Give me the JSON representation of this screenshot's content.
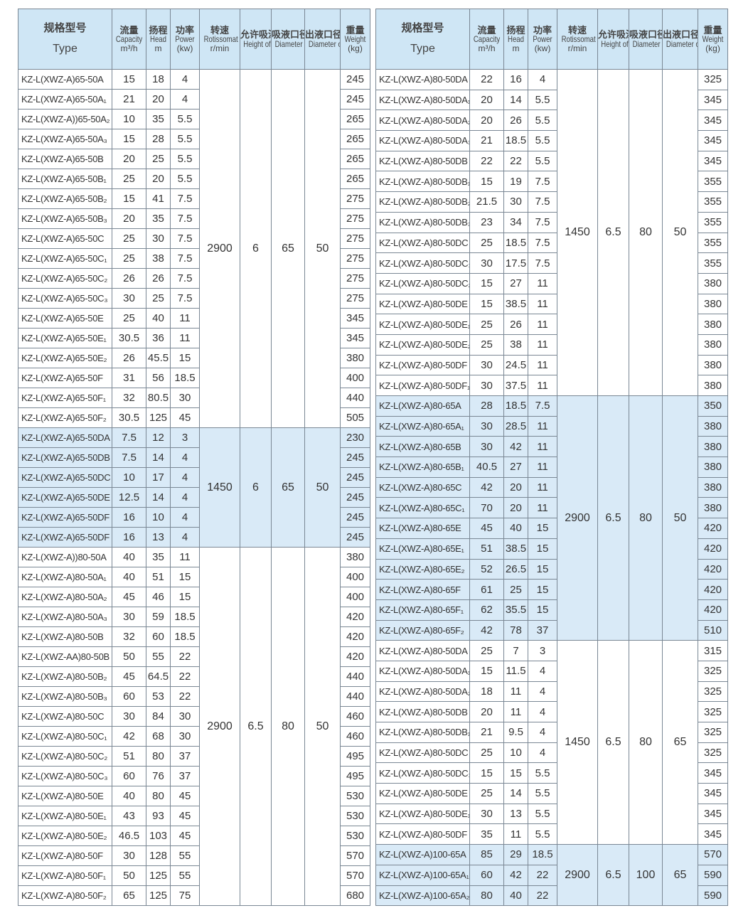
{
  "header": {
    "type": {
      "cn": "规格型号",
      "en": "Type"
    },
    "capacity": {
      "cn": "流量",
      "en": "Capacity",
      "unit": "m³/h"
    },
    "head": {
      "cn": "扬程",
      "en": "Head",
      "unit": "m"
    },
    "power": {
      "cn": "功率",
      "en": "Power",
      "unit": "(kw)"
    },
    "speed": {
      "cn": "转速",
      "en": "Rotissomat Speed",
      "unit": "r/min"
    },
    "suction": {
      "cn": "允许吸深",
      "en": "Height of Suciton"
    },
    "inlet": {
      "cn": "吸液口径",
      "en": "Diameter of Inlet"
    },
    "outlet": {
      "cn": "出液口径",
      "en": "Diameter of Outlet"
    },
    "weight": {
      "cn": "重量",
      "en": "Weight",
      "unit": "(kg)"
    }
  },
  "shade_color": "#d9eaf7",
  "header_color": "#cfe6f5",
  "tables": [
    {
      "groups": [
        {
          "speed": "2900",
          "suction": "6",
          "inlet": "65",
          "outlet": "50",
          "shaded": false,
          "rows": [
            [
              "KZ-L(XWZ-A)65-50A",
              "15",
              "18",
              "4",
              "245"
            ],
            [
              "KZ-L(XWZ-A)65-50A₁",
              "21",
              "20",
              "4",
              "245"
            ],
            [
              "KZ-L(XWZ-A))65-50A₂",
              "10",
              "35",
              "5.5",
              "265"
            ],
            [
              "KZ-L(XWZ-A)65-50A₃",
              "15",
              "28",
              "5.5",
              "265"
            ],
            [
              "KZ-L(XWZ-A)65-50B",
              "20",
              "25",
              "5.5",
              "265"
            ],
            [
              "KZ-L(XWZ-A)65-50B₁",
              "25",
              "20",
              "5.5",
              "265"
            ],
            [
              "KZ-L(XWZ-A)65-50B₂",
              "15",
              "41",
              "7.5",
              "275"
            ],
            [
              "KZ-L(XWZ-A)65-50B₃",
              "20",
              "35",
              "7.5",
              "275"
            ],
            [
              "KZ-L(XWZ-A)65-50C",
              "25",
              "30",
              "7.5",
              "275"
            ],
            [
              "KZ-L(XWZ-A)65-50C₁",
              "25",
              "38",
              "7.5",
              "275"
            ],
            [
              "KZ-L(XWZ-A)65-50C₂",
              "26",
              "26",
              "7.5",
              "275"
            ],
            [
              "KZ-L(XWZ-A)65-50C₃",
              "30",
              "25",
              "7.5",
              "275"
            ],
            [
              "KZ-L(XWZ-A)65-50E",
              "25",
              "40",
              "11",
              "345"
            ],
            [
              "KZ-L(XWZ-A)65-50E₁",
              "30.5",
              "36",
              "11",
              "345"
            ],
            [
              "KZ-L(XWZ-A)65-50E₂",
              "26",
              "45.5",
              "15",
              "380"
            ],
            [
              "KZ-L(XWZ-A)65-50F",
              "31",
              "56",
              "18.5",
              "400"
            ],
            [
              "KZ-L(XWZ-A)65-50F₁",
              "32",
              "80.5",
              "30",
              "440"
            ],
            [
              "KZ-L(XWZ-A)65-50F₂",
              "30.5",
              "125",
              "45",
              "505"
            ]
          ]
        },
        {
          "speed": "1450",
          "suction": "6",
          "inlet": "65",
          "outlet": "50",
          "shaded": true,
          "rows": [
            [
              "KZ-L(XWZ-A)65-50DA",
              "7.5",
              "12",
              "3",
              "230"
            ],
            [
              "KZ-L(XWZ-A)65-50DB",
              "7.5",
              "14",
              "4",
              "245"
            ],
            [
              "KZ-L(XWZ-A)65-50DC",
              "10",
              "17",
              "4",
              "245"
            ],
            [
              "KZ-L(XWZ-A)65-50DE",
              "12.5",
              "14",
              "4",
              "245"
            ],
            [
              "KZ-L(XWZ-A)65-50DF",
              "16",
              "10",
              "4",
              "245"
            ],
            [
              "KZ-L(XWZ-A)65-50DF",
              "16",
              "13",
              "4",
              "245"
            ]
          ]
        },
        {
          "speed": "2900",
          "suction": "6.5",
          "inlet": "80",
          "outlet": "50",
          "shaded": false,
          "rows": [
            [
              "KZ-L(XWZ-A))80-50A",
              "40",
              "35",
              "11",
              "380"
            ],
            [
              "KZ-L(XWZ-A)80-50A₁",
              "40",
              "51",
              "15",
              "400"
            ],
            [
              "KZ-L(XWZ-A)80-50A₂",
              "45",
              "46",
              "15",
              "400"
            ],
            [
              "KZ-L(XWZ-A)80-50A₃",
              "30",
              "59",
              "18.5",
              "420"
            ],
            [
              "KZ-L(XWZ-A)80-50B",
              "32",
              "60",
              "18.5",
              "420"
            ],
            [
              "KZ-L(XWZ-AA)80-50B",
              "50",
              "55",
              "22",
              "420"
            ],
            [
              "KZ-L(XWZ-A)80-50B₂",
              "45",
              "64.5",
              "22",
              "440"
            ],
            [
              "KZ-L(XWZ-A)80-50B₃",
              "60",
              "53",
              "22",
              "440"
            ],
            [
              "KZ-L(XWZ-A)80-50C",
              "30",
              "84",
              "30",
              "460"
            ],
            [
              "KZ-L(XWZ-A)80-50C₁",
              "42",
              "68",
              "30",
              "460"
            ],
            [
              "KZ-L(XWZ-A)80-50C₂",
              "51",
              "80",
              "37",
              "495"
            ],
            [
              "KZ-L(XWZ-A)80-50C₃",
              "60",
              "76",
              "37",
              "495"
            ],
            [
              "KZ-L(XWZ-A)80-50E",
              "40",
              "80",
              "45",
              "530"
            ],
            [
              "KZ-L(XWZ-A)80-50E₁",
              "43",
              "93",
              "45",
              "530"
            ],
            [
              "KZ-L(XWZ-A)80-50E₂",
              "46.5",
              "103",
              "45",
              "530"
            ],
            [
              "KZ-L(XWZ-A)80-50F",
              "30",
              "128",
              "55",
              "570"
            ],
            [
              "KZ-L(XWZ-A)80-50F₁",
              "50",
              "125",
              "55",
              "570"
            ],
            [
              "KZ-L(XWZ-A)80-50F₂",
              "65",
              "125",
              "75",
              "680"
            ]
          ]
        }
      ]
    },
    {
      "groups": [
        {
          "speed": "1450",
          "suction": "6.5",
          "inlet": "80",
          "outlet": "50",
          "shaded": false,
          "rows": [
            [
              "KZ-L(XWZ-A)80-50DA",
              "22",
              "16",
              "4",
              "325"
            ],
            [
              "KZ-L(XWZ-A)80-50DA₁",
              "20",
              "14",
              "5.5",
              "345"
            ],
            [
              "KZ-L(XWZ-A)80-50DA₂",
              "20",
              "26",
              "5.5",
              "345"
            ],
            [
              "KZ-L(XWZ-A)80-50DA₃",
              "21",
              "18.5",
              "5.5",
              "345"
            ],
            [
              "KZ-L(XWZ-A)80-50DB",
              "22",
              "22",
              "5.5",
              "345"
            ],
            [
              "KZ-L(XWZ-A)80-50DB₁",
              "15",
              "19",
              "7.5",
              "355"
            ],
            [
              "KZ-L(XWZ-A)80-50DB₂",
              "21.5",
              "30",
              "7.5",
              "355"
            ],
            [
              "KZ-L(XWZ-A)80-50DB₃",
              "23",
              "34",
              "7.5",
              "355"
            ],
            [
              "KZ-L(XWZ-A)80-50DC",
              "25",
              "18.5",
              "7.5",
              "355"
            ],
            [
              "KZ-L(XWZ-A)80-50DC₁",
              "30",
              "17.5",
              "7.5",
              "355"
            ],
            [
              "KZ-L(XWZ-A)80-50DC₂",
              "15",
              "27",
              "11",
              "380"
            ],
            [
              "KZ-L(XWZ-A)80-50DE",
              "15",
              "38.5",
              "11",
              "380"
            ],
            [
              "KZ-L(XWZ-A)80-50DE₁",
              "25",
              "26",
              "11",
              "380"
            ],
            [
              "KZ-L(XWZ-A)80-50DE₂",
              "25",
              "38",
              "11",
              "380"
            ],
            [
              "KZ-L(XWZ-A)80-50DF",
              "30",
              "24.5",
              "11",
              "380"
            ],
            [
              "KZ-L(XWZ-A)80-50DF₁",
              "30",
              "37.5",
              "11",
              "380"
            ]
          ]
        },
        {
          "speed": "2900",
          "suction": "6.5",
          "inlet": "80",
          "outlet": "50",
          "shaded": true,
          "rows": [
            [
              "KZ-L(XWZ-A)80-65A",
              "28",
              "18.5",
              "7.5",
              "350"
            ],
            [
              "KZ-L(XWZ-A)80-65A₁",
              "30",
              "28.5",
              "11",
              "380"
            ],
            [
              "KZ-L(XWZ-A)80-65B",
              "30",
              "42",
              "11",
              "380"
            ],
            [
              "KZ-L(XWZ-A)80-65B₁",
              "40.5",
              "27",
              "11",
              "380"
            ],
            [
              "KZ-L(XWZ-A)80-65C",
              "42",
              "20",
              "11",
              "380"
            ],
            [
              "KZ-L(XWZ-A)80-65C₁",
              "70",
              "20",
              "11",
              "380"
            ],
            [
              "KZ-L(XWZ-A)80-65E",
              "45",
              "40",
              "15",
              "420"
            ],
            [
              "KZ-L(XWZ-A)80-65E₁",
              "51",
              "38.5",
              "15",
              "420"
            ],
            [
              "KZ-L(XWZ-A)80-65E₂",
              "52",
              "26.5",
              "15",
              "420"
            ],
            [
              "KZ-L(XWZ-A)80-65F",
              "61",
              "25",
              "15",
              "420"
            ],
            [
              "KZ-L(XWZ-A)80-65F₁",
              "62",
              "35.5",
              "15",
              "420"
            ],
            [
              "KZ-L(XWZ-A)80-65F₂",
              "42",
              "78",
              "37",
              "510"
            ]
          ]
        },
        {
          "speed": "1450",
          "suction": "6.5",
          "inlet": "80",
          "outlet": "65",
          "shaded": false,
          "rows": [
            [
              "KZ-L(XWZ-A)80-50DA",
              "25",
              "7",
              "3",
              "315"
            ],
            [
              "KZ-L(XWZ-A)80-50DA₁",
              "15",
              "11.5",
              "4",
              "325"
            ],
            [
              "KZ-L(XWZ-A)80-50DA₂",
              "18",
              "11",
              "4",
              "325"
            ],
            [
              "KZ-L(XWZ-A)80-50DB",
              "20",
              "11",
              "4",
              "325"
            ],
            [
              "KZ-L(XWZ-A)80-50DB₁",
              "21",
              "9.5",
              "4",
              "325"
            ],
            [
              "KZ-L(XWZ-A)80-50DC",
              "25",
              "10",
              "4",
              "325"
            ],
            [
              "KZ-L(XWZ-A)80-50DC₁",
              "15",
              "15",
              "5.5",
              "345"
            ],
            [
              "KZ-L(XWZ-A)80-50DE",
              "25",
              "14",
              "5.5",
              "345"
            ],
            [
              "KZ-L(XWZ-A)80-50DE₁",
              "30",
              "13",
              "5.5",
              "345"
            ],
            [
              "KZ-L(XWZ-A)80-50DF",
              "35",
              "11",
              "5.5",
              "345"
            ]
          ]
        },
        {
          "speed": "2900",
          "suction": "6.5",
          "inlet": "100",
          "outlet": "65",
          "shaded": true,
          "rows": [
            [
              "KZ-L(XWZ-A)100-65A",
              "85",
              "29",
              "18.5",
              "570"
            ],
            [
              "KZ-L(XWZ-A)100-65A₁",
              "60",
              "42",
              "22",
              "590"
            ],
            [
              "KZ-L(XWZ-A)100-65A₂",
              "80",
              "40",
              "22",
              "590"
            ]
          ]
        }
      ]
    }
  ]
}
